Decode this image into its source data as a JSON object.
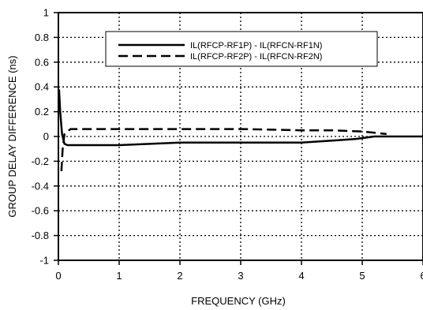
{
  "chart_data": {
    "type": "line",
    "title": "",
    "xlabel": "FREQUENCY (GHz)",
    "ylabel": "GROUP DELAY DIFFERENCE (ns)",
    "xlim": [
      0,
      6
    ],
    "ylim": [
      -1,
      1
    ],
    "xticks": [
      0,
      1,
      2,
      3,
      4,
      5,
      6
    ],
    "yticks": [
      1,
      0.8,
      0.6,
      0.4,
      0.2,
      0,
      -0.2,
      -0.4,
      -0.6,
      -0.8,
      -1
    ],
    "xtick_labels": [
      "0",
      "1",
      "2",
      "3",
      "4",
      "5",
      "6"
    ],
    "ytick_labels": [
      "1",
      "0.8",
      "0.6",
      "0.4",
      "0.2",
      "0",
      "-0.2",
      "-0.4",
      "-0.6",
      "-0.8",
      "-1"
    ],
    "grid": true,
    "legend_position": "top-right",
    "series": [
      {
        "name": "IL(RFCP-RF1P) - IL(RFCN-RF1N)",
        "style": "solid",
        "color": "#000000",
        "x": [
          0.01,
          0.03,
          0.06,
          0.1,
          0.15,
          0.25,
          0.5,
          1,
          1.5,
          2,
          2.5,
          3,
          3.5,
          4,
          4.3,
          4.6,
          4.9,
          5.2,
          5.5,
          6
        ],
        "y": [
          0.38,
          0.2,
          0.02,
          -0.06,
          -0.07,
          -0.07,
          -0.07,
          -0.07,
          -0.06,
          -0.05,
          -0.05,
          -0.05,
          -0.05,
          -0.05,
          -0.04,
          -0.03,
          -0.02,
          0,
          0,
          0
        ]
      },
      {
        "name": "IL(RFCP-RF2P) - IL(RFCN-RF2N)",
        "style": "dashed",
        "color": "#000000",
        "x": [
          0.05,
          0.07,
          0.1,
          0.15,
          0.2,
          0.3,
          0.5,
          1,
          2,
          3,
          4,
          4.5,
          5,
          5.2,
          5.4
        ],
        "y": [
          -0.28,
          -0.1,
          0.02,
          0.04,
          0.06,
          0.06,
          0.06,
          0.06,
          0.06,
          0.06,
          0.05,
          0.05,
          0.04,
          0.03,
          0.02
        ]
      }
    ]
  }
}
